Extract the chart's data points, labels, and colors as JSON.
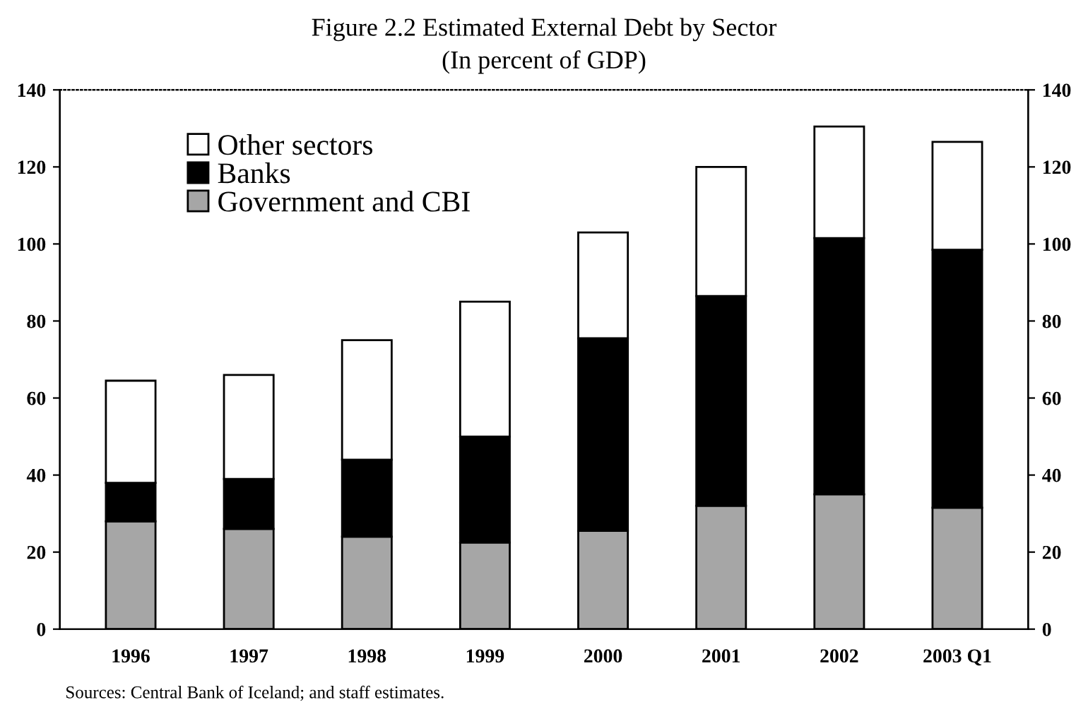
{
  "chart_data": {
    "type": "bar",
    "title": "Figure 2.2 Estimated External Debt by Sector",
    "subtitle": "(In percent of GDP)",
    "categories": [
      "1996",
      "1997",
      "1998",
      "1999",
      "2000",
      "2001",
      "2002",
      "2003 Q1"
    ],
    "stacked": true,
    "series": [
      {
        "name": "Government and CBI",
        "color": "#a6a6a6",
        "values": [
          28,
          26,
          24,
          22.5,
          25.5,
          32,
          35,
          31.5
        ]
      },
      {
        "name": "Banks",
        "color": "#000000",
        "values": [
          10,
          13,
          20,
          27.5,
          50,
          54.5,
          66.5,
          67
        ]
      },
      {
        "name": "Other sectors",
        "color": "#ffffff",
        "values": [
          26.5,
          27,
          31,
          35,
          27.5,
          33.5,
          29,
          28
        ]
      }
    ],
    "ylim": [
      0,
      140
    ],
    "yticks": [
      0,
      20,
      40,
      60,
      80,
      100,
      120,
      140
    ],
    "y2lim": [
      0,
      140
    ],
    "y2ticks": [
      0,
      20,
      40,
      60,
      80,
      100,
      120,
      140
    ],
    "legend": "top left",
    "grid": false,
    "annotations": [
      "Sources: Central Bank of Iceland; and staff estimates."
    ]
  }
}
